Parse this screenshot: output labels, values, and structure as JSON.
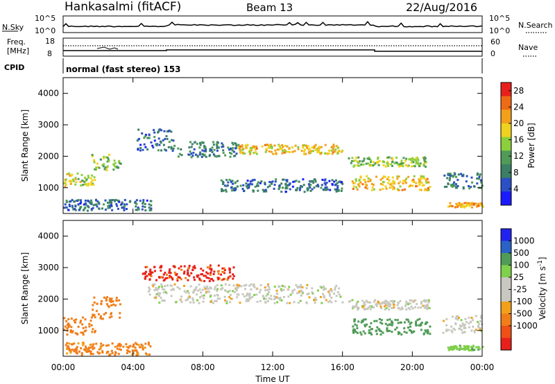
{
  "header": {
    "title": "Hankasalmi (fitACF)",
    "beam": "Beam 13",
    "date": "22/Aug/2016"
  },
  "top_panels": {
    "nsky_label": "N.Sky",
    "nsearch_label": "N.Search",
    "counts_ticks_left": [
      "10^5",
      "10^0"
    ],
    "counts_ticks_right": [
      "10^5",
      "10^0"
    ],
    "freq_label_1": "Freq.",
    "freq_label_2": "[MHz]",
    "freq_ticks": [
      "18",
      "8"
    ],
    "nave_label": "Nave",
    "nave_ticks": [
      "60",
      "0"
    ],
    "cpid_label": "CPID",
    "cpid_text": "normal (fast stereo) 153"
  },
  "colors": {
    "power_scale": [
      "#1a1aff",
      "#2b4fc4",
      "#3a7f66",
      "#4f9b57",
      "#8ccf3c",
      "#f0d21e",
      "#f2a01c",
      "#ef6a14",
      "#e8201a"
    ],
    "velocity_scale": [
      "#e8201a",
      "#ee5016",
      "#f07d18",
      "#f2a01c",
      "#c8c8c0",
      "#c8c8c0",
      "#7fd04a",
      "#4f9b57",
      "#2a62c8",
      "#2222ee"
    ],
    "background": "#ffffff"
  },
  "chart_data": [
    {
      "type": "heatmap",
      "title": "",
      "xlabel": "Time UT",
      "ylabel": "Slant Range [km]",
      "xlim": [
        "00:00",
        "24:00"
      ],
      "ylim": [
        180,
        4500
      ],
      "x_ticks": [
        "00:00",
        "04:00",
        "08:00",
        "12:00",
        "16:00",
        "20:00",
        "00:00"
      ],
      "y_ticks": [
        "1000",
        "2000",
        "3000",
        "4000"
      ],
      "colorbar_label": "Power [dB]",
      "colorbar_ticks": [
        "4",
        "8",
        "12",
        "16",
        "20",
        "24",
        "28"
      ],
      "colorbar_range": [
        0,
        30
      ],
      "features": [
        {
          "from_h": 0.0,
          "to_h": 0.8,
          "range_km": [
            1050,
            1500
          ],
          "value": 18
        },
        {
          "from_h": 0.8,
          "to_h": 1.8,
          "range_km": [
            1100,
            1450
          ],
          "value": 16
        },
        {
          "from_h": 1.6,
          "to_h": 2.6,
          "range_km": [
            1500,
            2100
          ],
          "value": 14
        },
        {
          "from_h": 2.8,
          "to_h": 3.3,
          "range_km": [
            1500,
            1900
          ],
          "value": 12
        },
        {
          "from_h": 4.2,
          "to_h": 6.5,
          "range_km": [
            2200,
            2900
          ],
          "value": 6
        },
        {
          "from_h": 6.5,
          "to_h": 10.0,
          "range_km": [
            2000,
            2500
          ],
          "value": 8
        },
        {
          "from_h": 10.0,
          "to_h": 16.0,
          "range_km": [
            2100,
            2400
          ],
          "value": 20
        },
        {
          "from_h": 9.0,
          "to_h": 16.0,
          "range_km": [
            900,
            1300
          ],
          "value": 6
        },
        {
          "from_h": 16.3,
          "to_h": 20.8,
          "range_km": [
            1700,
            2000
          ],
          "value": 14
        },
        {
          "from_h": 16.5,
          "to_h": 21.0,
          "range_km": [
            950,
            1400
          ],
          "value": 20
        },
        {
          "from_h": 21.7,
          "to_h": 24.0,
          "range_km": [
            1000,
            1500
          ],
          "value": 8
        },
        {
          "from_h": 22.0,
          "to_h": 24.0,
          "range_km": [
            400,
            550
          ],
          "value": 22
        },
        {
          "from_h": 0.0,
          "to_h": 5.0,
          "range_km": [
            300,
            650
          ],
          "value": 6
        }
      ]
    },
    {
      "type": "heatmap",
      "title": "",
      "xlabel": "Time UT",
      "ylabel": "Slant Range [km]",
      "xlim": [
        "00:00",
        "24:00"
      ],
      "ylim": [
        180,
        4500
      ],
      "x_ticks": [
        "00:00",
        "04:00",
        "08:00",
        "12:00",
        "16:00",
        "20:00",
        "00:00"
      ],
      "y_ticks": [
        "1000",
        "2000",
        "3000",
        "4000"
      ],
      "colorbar_label": "Velocity [m s^-1]",
      "colorbar_ticks": [
        "1000",
        "500",
        "100",
        "25",
        "-25",
        "-100",
        "-500",
        "-1000"
      ],
      "features": [
        {
          "from_h": 0.0,
          "to_h": 1.8,
          "range_km": [
            900,
            1500
          ],
          "value": -250
        },
        {
          "from_h": 1.6,
          "to_h": 3.3,
          "range_km": [
            1400,
            2100
          ],
          "value": -300
        },
        {
          "from_h": 4.5,
          "to_h": 9.8,
          "range_km": [
            2600,
            3100
          ],
          "value": -600
        },
        {
          "from_h": 4.8,
          "to_h": 16.0,
          "range_km": [
            1900,
            2500
          ],
          "value": 0
        },
        {
          "from_h": 16.3,
          "to_h": 21.0,
          "range_km": [
            1700,
            2000
          ],
          "value": 0
        },
        {
          "from_h": 16.5,
          "to_h": 21.0,
          "range_km": [
            900,
            1400
          ],
          "value": 150
        },
        {
          "from_h": 21.7,
          "to_h": 24.0,
          "range_km": [
            950,
            1500
          ],
          "value": 0
        },
        {
          "from_h": 22.0,
          "to_h": 24.0,
          "range_km": [
            400,
            550
          ],
          "value": 80
        },
        {
          "from_h": 0.0,
          "to_h": 5.0,
          "range_km": [
            250,
            650
          ],
          "value": -120
        }
      ]
    }
  ]
}
